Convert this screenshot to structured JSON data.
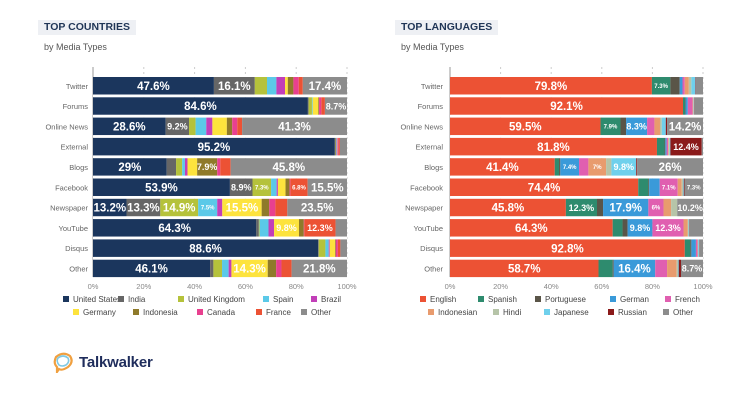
{
  "brand": {
    "name": "Talkwalker"
  },
  "chart_data": [
    {
      "type": "bar",
      "orientation": "horizontal",
      "stacked": true,
      "title": "TOP COUNTRIES",
      "subtitle": "by Media Types",
      "xlim": [
        0,
        100
      ],
      "xticks": [
        "0%",
        "20%",
        "40%",
        "60%",
        "80%",
        "100%"
      ],
      "grid": true,
      "legend_position": "bottom",
      "categories": [
        "Twitter",
        "Forums",
        "Online News",
        "External",
        "Blogs",
        "Facebook",
        "Newspaper",
        "YouTube",
        "Disqus",
        "Other"
      ],
      "series": [
        {
          "name": "United States",
          "color": "#1b365d",
          "values": [
            47.6,
            84.6,
            28.6,
            95.2,
            29,
            53.9,
            13.2,
            64.3,
            88.6,
            46.1
          ],
          "labels": [
            "47.6%",
            "84.6%",
            "28.6%",
            "95.2%",
            "29%",
            "53.9%",
            "13.2%",
            "64.3%",
            "88.6%",
            "46.1%"
          ]
        },
        {
          "name": "India",
          "color": "#666666",
          "values": [
            16.1,
            0.3,
            9.2,
            0.3,
            3.7,
            8.9,
            13.3,
            1.0,
            0.3,
            1.3
          ],
          "labels": [
            "16.1%",
            null,
            "9.2%",
            null,
            null,
            "8.9%",
            "13.3%",
            null,
            null,
            null
          ]
        },
        {
          "name": "United Kingdom",
          "color": "#b5c23b",
          "values": [
            4.8,
            1.3,
            2.6,
            0.2,
            2.4,
            7.3,
            14.9,
            0.3,
            2.6,
            3.4
          ],
          "labels": [
            null,
            null,
            null,
            null,
            null,
            "7.3%",
            "14.9%",
            null,
            null,
            null
          ]
        },
        {
          "name": "Spain",
          "color": "#5bc9e8",
          "values": [
            3.7,
            0.3,
            4.2,
            0.2,
            1.1,
            2.2,
            7.5,
            3.5,
            1.3,
            2.6
          ],
          "labels": [
            null,
            null,
            null,
            null,
            null,
            null,
            "7.5%",
            null,
            null,
            null
          ]
        },
        {
          "name": "Brazil",
          "color": "#c23fb8",
          "values": [
            3.4,
            0,
            2.4,
            0.2,
            1.0,
            0.5,
            2.0,
            2.2,
            0.4,
            1.1
          ],
          "labels": [
            null,
            null,
            null,
            null,
            null,
            null,
            null,
            null,
            null,
            null
          ]
        },
        {
          "name": "Germany",
          "color": "#fde33d",
          "values": [
            1.1,
            2.2,
            5.7,
            0.1,
            3.8,
            3.0,
            15.5,
            9.8,
            2.1,
            14.3
          ],
          "labels": [
            null,
            null,
            null,
            null,
            null,
            null,
            "15.5%",
            "9.8%",
            null,
            "14.3%"
          ]
        },
        {
          "name": "Indonesia",
          "color": "#8f7a2a",
          "values": [
            2.2,
            0.3,
            2.1,
            0.1,
            7.9,
            1.6,
            3.0,
            1.9,
            0.3,
            3.3
          ],
          "labels": [
            null,
            null,
            null,
            null,
            "7.9%",
            null,
            null,
            null,
            null,
            null
          ]
        },
        {
          "name": "Canada",
          "color": "#e8408f",
          "values": [
            2.1,
            0.9,
            2.0,
            0.4,
            1.2,
            0.3,
            2.4,
            0.2,
            0.8,
            2.1
          ],
          "labels": [
            null,
            null,
            null,
            null,
            null,
            null,
            null,
            null,
            null,
            null
          ]
        },
        {
          "name": "France",
          "color": "#ec5234",
          "values": [
            1.6,
            1.4,
            1.9,
            0.5,
            4.1,
            6.8,
            4.7,
            12.3,
            1.0,
            4.0
          ],
          "labels": [
            null,
            null,
            null,
            null,
            null,
            "6.8%",
            null,
            "12.3%",
            null,
            null
          ]
        },
        {
          "name": "Other",
          "color": "#8c8c8c",
          "values": [
            17.4,
            8.7,
            41.3,
            2.8,
            45.8,
            15.5,
            23.5,
            4.5,
            2.6,
            21.8
          ],
          "labels": [
            "17.4%",
            "8.7%",
            "41.3%",
            null,
            "45.8%",
            "15.5%",
            "23.5%",
            null,
            null,
            "21.8%"
          ]
        }
      ]
    },
    {
      "type": "bar",
      "orientation": "horizontal",
      "stacked": true,
      "title": "TOP LANGUAGES",
      "subtitle": "by Media Types",
      "xlim": [
        0,
        100
      ],
      "xticks": [
        "0%",
        "20%",
        "40%",
        "60%",
        "80%",
        "100%"
      ],
      "grid": true,
      "legend_position": "bottom",
      "categories": [
        "Twitter",
        "Forums",
        "Online News",
        "External",
        "Blogs",
        "Facebook",
        "Newspaper",
        "YouTube",
        "Disqus",
        "Other"
      ],
      "series": [
        {
          "name": "English",
          "color": "#ec5234",
          "values": [
            79.8,
            92.1,
            59.5,
            81.8,
            41.4,
            74.4,
            45.8,
            64.3,
            92.8,
            58.7
          ],
          "labels": [
            "79.8%",
            "92.1%",
            "59.5%",
            "81.8%",
            "41.4%",
            "74.4%",
            "45.8%",
            "64.3%",
            "92.8%",
            "58.7%"
          ]
        },
        {
          "name": "Spanish",
          "color": "#2e8b6e",
          "values": [
            7.3,
            0.8,
            7.9,
            3.0,
            1.7,
            4.0,
            12.3,
            3.9,
            2.2,
            5.6
          ],
          "labels": [
            "7.3%",
            null,
            "7.9%",
            null,
            null,
            null,
            "12.3%",
            null,
            null,
            null
          ]
        },
        {
          "name": "Portuguese",
          "color": "#5a5548",
          "values": [
            3.7,
            0.2,
            2.2,
            0.3,
            0.5,
            0.3,
            2.4,
            2.0,
            0.4,
            0.4
          ],
          "labels": [
            null,
            null,
            null,
            null,
            null,
            null,
            null,
            null,
            null,
            null
          ]
        },
        {
          "name": "German",
          "color": "#3a9ad9",
          "values": [
            1.1,
            0.9,
            8.3,
            0.5,
            7.4,
            4.2,
            17.9,
            9.8,
            1.8,
            16.4
          ],
          "labels": [
            null,
            null,
            "8.3%",
            null,
            "7.4%",
            null,
            "17.9%",
            "9.8%",
            null,
            "16.4%"
          ]
        },
        {
          "name": "French",
          "color": "#e05fb0",
          "values": [
            0.9,
            1.9,
            2.9,
            0.6,
            3.7,
            7.1,
            6,
            12.3,
            0.6,
            4.7
          ],
          "labels": [
            null,
            null,
            null,
            null,
            null,
            "7.1%",
            "6%",
            "12.3%",
            null,
            null
          ]
        },
        {
          "name": "Indonesian",
          "color": "#e89b6e",
          "values": [
            1.6,
            0.3,
            2.2,
            0.3,
            7,
            1.6,
            3.0,
            1.7,
            0.2,
            3.8
          ],
          "labels": [
            null,
            null,
            null,
            null,
            "7%",
            null,
            null,
            null,
            null,
            null
          ]
        },
        {
          "name": "Hindi",
          "color": "#b6c4a8",
          "values": [
            1.0,
            0.1,
            0.7,
            0.3,
            2.1,
            0.5,
            2.4,
            0.3,
            0.1,
            0.5
          ],
          "labels": [
            null,
            null,
            null,
            null,
            null,
            null,
            null,
            null,
            null,
            null
          ]
        },
        {
          "name": "Japanese",
          "color": "#6fd0ec",
          "values": [
            1.6,
            0.2,
            1.6,
            0.3,
            9.8,
            0.3,
            0,
            0.2,
            0.3,
            0.3
          ],
          "labels": [
            null,
            null,
            null,
            null,
            "9.8%",
            null,
            null,
            null,
            null,
            null
          ]
        },
        {
          "name": "Russian",
          "color": "#8b1a1a",
          "values": [
            0.2,
            0.1,
            0.5,
            12.4,
            0.4,
            0.3,
            0,
            0.1,
            0.1,
            0.9
          ],
          "labels": [
            null,
            null,
            null,
            "12.4%",
            null,
            null,
            null,
            null,
            null,
            null
          ]
        },
        {
          "name": "Other",
          "color": "#8c8c8c",
          "values": [
            2.8,
            3.4,
            14.2,
            0.5,
            26,
            7.3,
            10.2,
            5.4,
            1.5,
            8.7
          ],
          "labels": [
            null,
            null,
            "14.2%",
            null,
            "26%",
            "7.3%",
            "10.2%",
            null,
            null,
            "8.7%"
          ]
        }
      ]
    }
  ]
}
